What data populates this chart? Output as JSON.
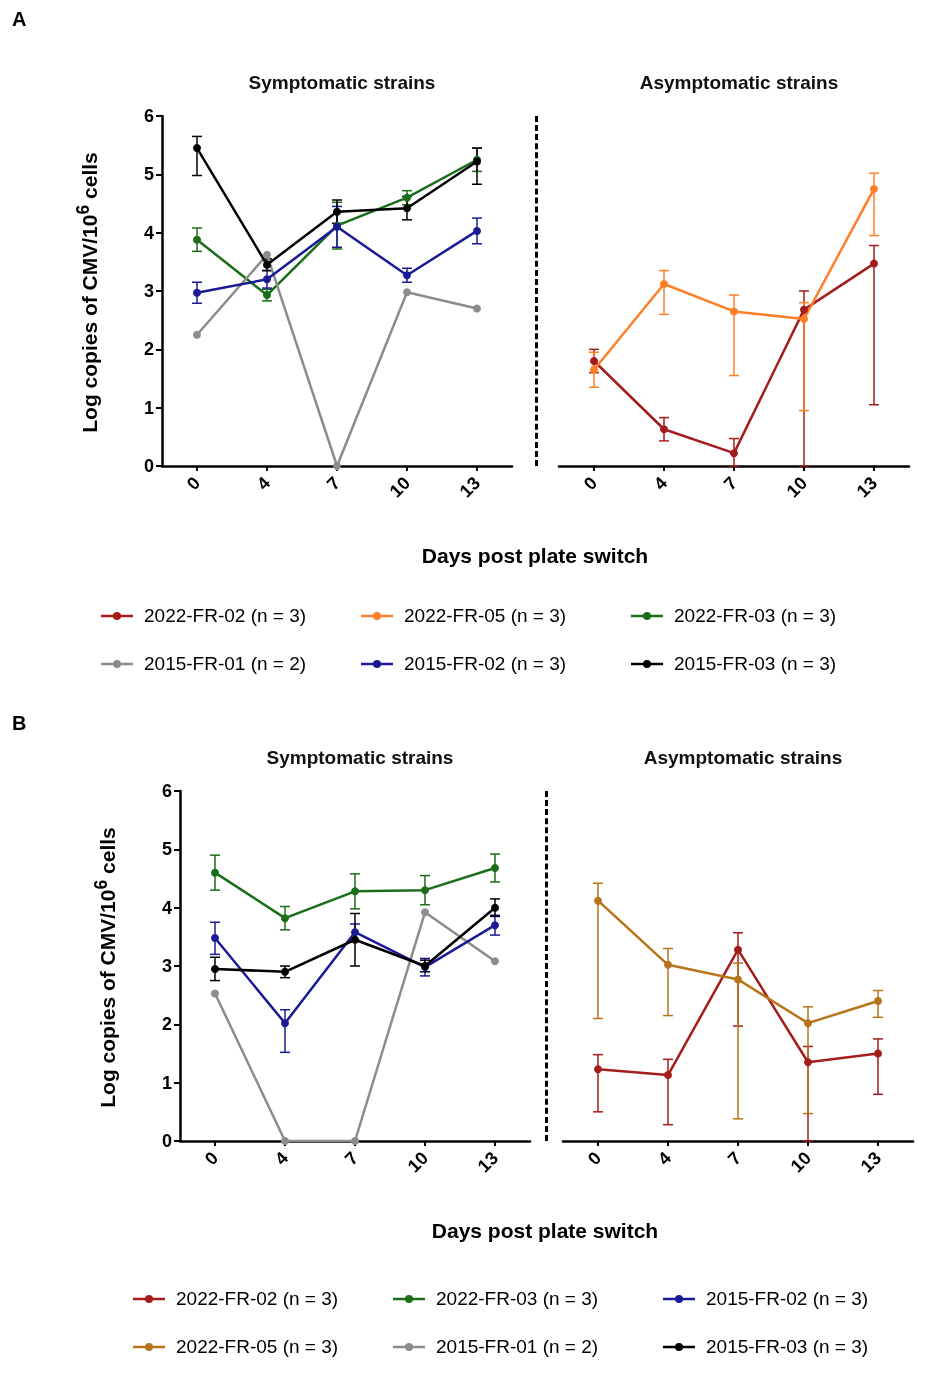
{
  "chart_data": [
    {
      "type": "line",
      "title": "Symptomatic strains",
      "xlabel": "Days post plate switch",
      "ylabel": "Log copies of CMV/10$^{6}$ cells",
      "annotations": [
        "A"
      ],
      "categories": [
        "0",
        "4",
        "7",
        "10",
        "13"
      ],
      "ylim": [
        0,
        6
      ],
      "yticks": [
        0,
        1,
        2,
        3,
        4,
        5,
        6
      ],
      "grid": false,
      "marker": "circle",
      "legend": "bottom",
      "series": [
        {
          "name": "2022-FR-03 (n = 3)",
          "color": "#1a6e1a",
          "values": [
            3.88,
            2.93,
            4.12,
            4.6,
            5.25
          ],
          "errors": [
            0.2,
            0.1,
            0.4,
            0.12,
            0.2
          ]
        },
        {
          "name": "2015-FR-01 (n = 2)",
          "color": "#8c8c8c",
          "values": [
            2.25,
            3.62,
            0,
            2.98,
            2.7
          ]
        },
        {
          "name": "2015-FR-02 (n = 3)",
          "color": "#1a1a96",
          "values": [
            2.97,
            3.2,
            4.1,
            3.27,
            4.03
          ],
          "errors": [
            0.18,
            0.15,
            0.35,
            0.12,
            0.22
          ]
        },
        {
          "name": "2015-FR-03 (n = 3)",
          "color": "#000000",
          "values": [
            5.45,
            3.45,
            4.36,
            4.42,
            5.22
          ],
          "errors": [
            [
              4.98,
              5.65
            ],
            0.1,
            0.2,
            0.2,
            [
              4.83,
              5.45
            ]
          ]
        }
      ]
    },
    {
      "type": "line",
      "title": "Asymptomatic strains",
      "categories": [
        "0",
        "4",
        "7",
        "10",
        "13"
      ],
      "ylim": [
        0,
        6
      ],
      "tick_labels": "x",
      "grid": false,
      "marker": "circle",
      "legend": "bottom",
      "series": [
        {
          "name": "2022-FR-02 (n = 3)",
          "color": "#a51c1c",
          "values": [
            1.8,
            0.63,
            0.22,
            2.68,
            3.47
          ],
          "errors": [
            0.2,
            0.2,
            [
              0,
              0.47
            ],
            [
              0,
              3.0
            ],
            [
              1.05,
              3.78
            ]
          ]
        },
        {
          "name": "2022-FR-05 (n = 3)",
          "color": "#ff7f27",
          "values": [
            1.65,
            3.12,
            2.65,
            2.52,
            4.75
          ],
          "errors": [
            0.3,
            [
              2.6,
              3.35
            ],
            [
              1.55,
              2.93
            ],
            [
              0.95,
              2.8
            ],
            [
              3.95,
              5.02
            ]
          ]
        }
      ]
    },
    {
      "type": "line",
      "title": "Symptomatic strains",
      "xlabel": "Days post plate switch",
      "ylabel": "Log copies of CMV/10$^{6}$ cells",
      "annotations": [
        "B"
      ],
      "categories": [
        "0",
        "4",
        "7",
        "10",
        "13"
      ],
      "ylim": [
        0,
        6
      ],
      "yticks": [
        0,
        1,
        2,
        3,
        4,
        5,
        6
      ],
      "grid": false,
      "marker": "circle",
      "legend": "bottom",
      "series": [
        {
          "name": "2022-FR-03 (n = 3)",
          "color": "#1a6e1a",
          "values": [
            4.6,
            3.82,
            4.28,
            4.3,
            4.68
          ],
          "errors": [
            0.3,
            0.2,
            0.3,
            0.25,
            0.24
          ]
        },
        {
          "name": "2015-FR-01 (n = 2)",
          "color": "#8c8c8c",
          "values": [
            2.53,
            0,
            0,
            3.92,
            3.08
          ]
        },
        {
          "name": "2015-FR-02 (n = 3)",
          "color": "#1a1a96",
          "values": [
            3.48,
            2.02,
            3.58,
            2.98,
            3.7
          ],
          "errors": [
            [
              3.2,
              3.75
            ],
            [
              1.52,
              2.25
            ],
            0.14,
            0.15,
            0.17
          ]
        },
        {
          "name": "2015-FR-03 (n = 3)",
          "color": "#000000",
          "values": [
            2.95,
            2.9,
            3.45,
            3.0,
            4.0
          ],
          "errors": [
            0.2,
            0.1,
            0.45,
            0.1,
            0.15
          ]
        }
      ]
    },
    {
      "type": "line",
      "title": "Asymptomatic strains",
      "categories": [
        "0",
        "4",
        "7",
        "10",
        "13"
      ],
      "ylim": [
        0,
        6
      ],
      "tick_labels": "x",
      "grid": false,
      "marker": "circle",
      "legend": "bottom",
      "series": [
        {
          "name": "2022-FR-02 (n = 3)",
          "color": "#a51c1c",
          "values": [
            1.23,
            1.13,
            3.28,
            1.35,
            1.5
          ],
          "errors": [
            [
              0.5,
              1.48
            ],
            [
              0.28,
              1.4
            ],
            [
              1.97,
              3.57
            ],
            [
              0,
              1.62
            ],
            [
              0.8,
              1.75
            ]
          ]
        },
        {
          "name": "2022-FR-05 (n = 3)",
          "color": "#b8741a",
          "values": [
            4.12,
            3.02,
            2.77,
            2.02,
            2.4
          ],
          "errors": [
            [
              2.1,
              4.42
            ],
            [
              2.15,
              3.3
            ],
            [
              0.38,
              3.05
            ],
            [
              0.47,
              2.3
            ],
            [
              2.12,
              2.58
            ]
          ]
        }
      ]
    }
  ]
}
